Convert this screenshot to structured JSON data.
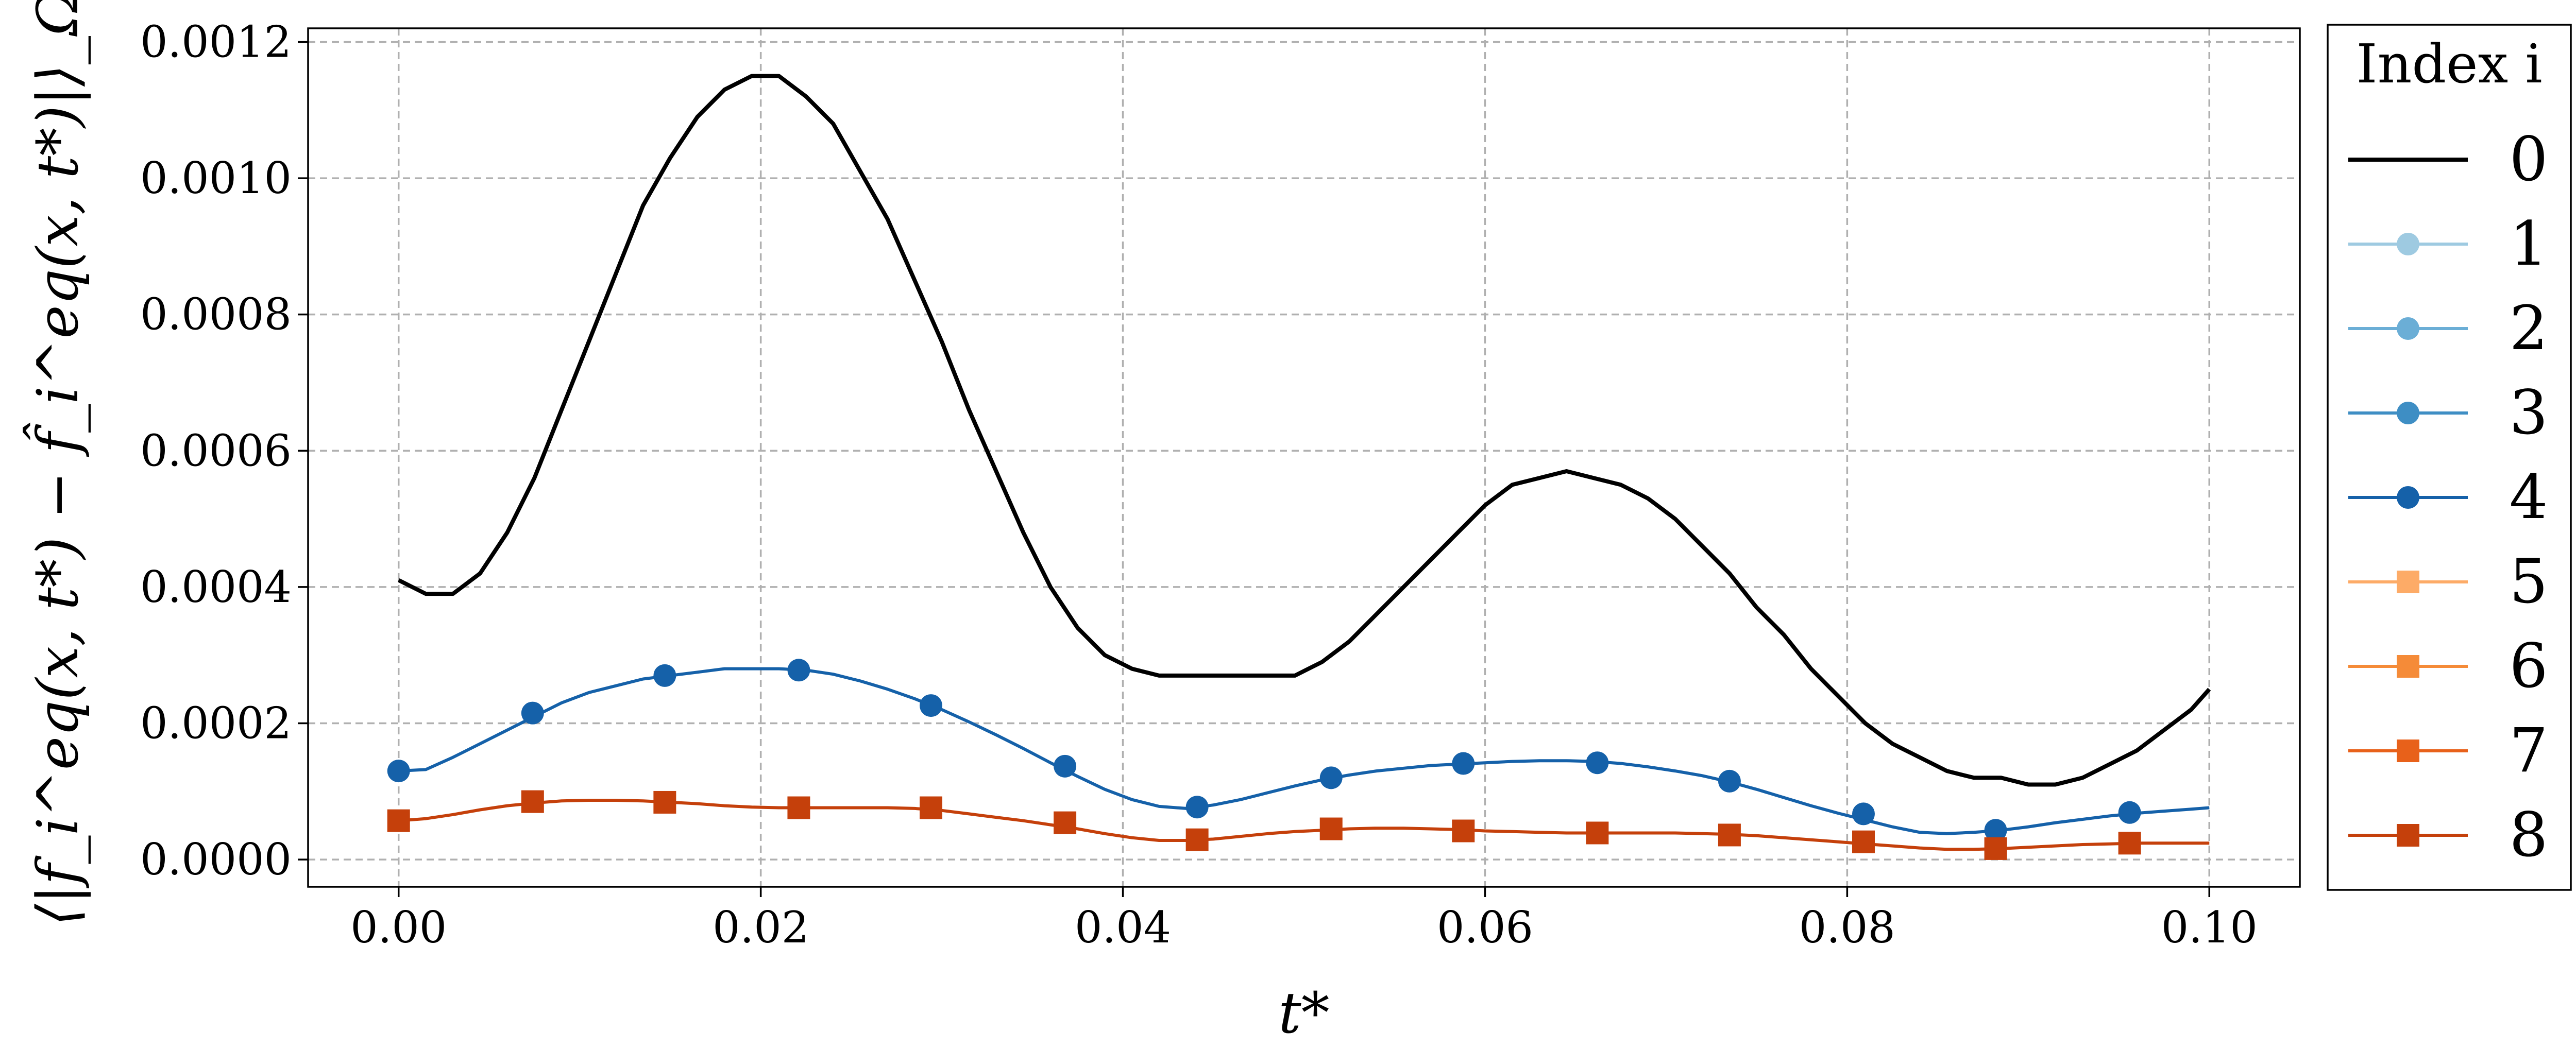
{
  "chart_data": {
    "type": "line",
    "xlabel": "t*",
    "ylabel": "⟨|f_i^eq(x, t*) − f̂_i^eq(x, t*)|⟩_Ω",
    "xlim": [
      -0.005,
      0.105
    ],
    "ylim": [
      -4e-05,
      0.00122
    ],
    "x_ticks": [
      "0.00",
      "0.02",
      "0.04",
      "0.06",
      "0.08",
      "0.10"
    ],
    "y_ticks": [
      "0.0000",
      "0.0002",
      "0.0004",
      "0.0006",
      "0.0008",
      "0.0010",
      "0.0012"
    ],
    "grid": true,
    "legend": {
      "title": "Index i",
      "placement": "outside-right"
    },
    "series": [
      {
        "name": "0",
        "color": "#000000",
        "marker": "none",
        "x": [
          0.0,
          0.0015,
          0.003,
          0.0045,
          0.006,
          0.0075,
          0.009,
          0.0105,
          0.012,
          0.0135,
          0.015,
          0.0165,
          0.018,
          0.0195,
          0.021,
          0.0225,
          0.024,
          0.0255,
          0.027,
          0.0285,
          0.03,
          0.0315,
          0.033,
          0.0345,
          0.036,
          0.0375,
          0.039,
          0.0405,
          0.042,
          0.0435,
          0.045,
          0.0465,
          0.048,
          0.0495,
          0.051,
          0.0525,
          0.054,
          0.0555,
          0.057,
          0.0585,
          0.06,
          0.0615,
          0.063,
          0.0645,
          0.066,
          0.0675,
          0.069,
          0.0705,
          0.072,
          0.0735,
          0.075,
          0.0765,
          0.078,
          0.0795,
          0.081,
          0.0825,
          0.084,
          0.0855,
          0.087,
          0.0885,
          0.09,
          0.0915,
          0.093,
          0.0945,
          0.096,
          0.0975,
          0.099,
          0.1
        ],
        "y": [
          0.00041,
          0.00039,
          0.00039,
          0.00042,
          0.00048,
          0.00056,
          0.00066,
          0.00076,
          0.00086,
          0.00096,
          0.00103,
          0.00109,
          0.00113,
          0.00115,
          0.00115,
          0.00112,
          0.00108,
          0.00101,
          0.00094,
          0.00085,
          0.00076,
          0.00066,
          0.00057,
          0.00048,
          0.0004,
          0.00034,
          0.0003,
          0.00028,
          0.00027,
          0.00027,
          0.00027,
          0.00027,
          0.00027,
          0.00027,
          0.00029,
          0.00032,
          0.00036,
          0.0004,
          0.00044,
          0.00048,
          0.00052,
          0.00055,
          0.00056,
          0.00057,
          0.00056,
          0.00055,
          0.00053,
          0.0005,
          0.00046,
          0.00042,
          0.00037,
          0.00033,
          0.00028,
          0.00024,
          0.0002,
          0.00017,
          0.00015,
          0.00013,
          0.00012,
          0.00012,
          0.00011,
          0.00011,
          0.00012,
          0.00014,
          0.00016,
          0.00019,
          0.00022,
          0.00025
        ]
      },
      {
        "name": "1",
        "color": "#9ecae1",
        "marker": "circle",
        "x": [],
        "y": []
      },
      {
        "name": "2",
        "color": "#6baed6",
        "marker": "circle",
        "x": [],
        "y": []
      },
      {
        "name": "3",
        "color": "#3e8ec4",
        "marker": "circle",
        "x": [],
        "y": []
      },
      {
        "name": "4",
        "color": "#1561a9",
        "marker": "circle",
        "x": [
          0.0,
          0.0015,
          0.003,
          0.0045,
          0.006,
          0.0075,
          0.009,
          0.0105,
          0.012,
          0.0135,
          0.015,
          0.0165,
          0.018,
          0.0195,
          0.021,
          0.0225,
          0.024,
          0.0255,
          0.027,
          0.0285,
          0.03,
          0.0315,
          0.033,
          0.0345,
          0.036,
          0.0375,
          0.039,
          0.0405,
          0.042,
          0.0435,
          0.045,
          0.0465,
          0.048,
          0.0495,
          0.051,
          0.0525,
          0.054,
          0.0555,
          0.057,
          0.0585,
          0.06,
          0.0615,
          0.063,
          0.0645,
          0.066,
          0.0675,
          0.069,
          0.0705,
          0.072,
          0.0735,
          0.075,
          0.0765,
          0.078,
          0.0795,
          0.081,
          0.0825,
          0.084,
          0.0855,
          0.087,
          0.0885,
          0.09,
          0.0915,
          0.093,
          0.0945,
          0.096,
          0.0975,
          0.099,
          0.1
        ],
        "y": [
          0.00013,
          0.000132,
          0.00015,
          0.00017,
          0.00019,
          0.00021,
          0.00023,
          0.000245,
          0.000255,
          0.000265,
          0.00027,
          0.000275,
          0.00028,
          0.00028,
          0.00028,
          0.000278,
          0.000272,
          0.000262,
          0.00025,
          0.000236,
          0.00022,
          0.000202,
          0.000183,
          0.000163,
          0.000142,
          0.000122,
          0.000103,
          8.8e-05,
          7.8e-05,
          7.5e-05,
          8e-05,
          8.8e-05,
          9.8e-05,
          0.000108,
          0.000117,
          0.000124,
          0.00013,
          0.000134,
          0.000138,
          0.00014,
          0.000142,
          0.000144,
          0.000145,
          0.000145,
          0.000144,
          0.000141,
          0.000136,
          0.00013,
          0.000123,
          0.000114,
          0.000103,
          9.1e-05,
          7.9e-05,
          6.8e-05,
          5.8e-05,
          4.8e-05,
          4e-05,
          3.8e-05,
          4e-05,
          4.3e-05,
          4.8e-05,
          5.4e-05,
          5.9e-05,
          6.4e-05,
          6.8e-05,
          7.1e-05,
          7.4e-05,
          7.6e-05
        ]
      },
      {
        "name": "5",
        "color": "#fdab67",
        "marker": "square",
        "x": [],
        "y": []
      },
      {
        "name": "6",
        "color": "#f58b38",
        "marker": "square",
        "x": [],
        "y": []
      },
      {
        "name": "7",
        "color": "#e8611a",
        "marker": "square",
        "x": [],
        "y": []
      },
      {
        "name": "8",
        "color": "#c5400b",
        "marker": "square",
        "x": [
          0.0,
          0.0015,
          0.003,
          0.0045,
          0.006,
          0.0075,
          0.009,
          0.0105,
          0.012,
          0.0135,
          0.015,
          0.0165,
          0.018,
          0.0195,
          0.021,
          0.0225,
          0.024,
          0.0255,
          0.027,
          0.0285,
          0.03,
          0.0315,
          0.033,
          0.0345,
          0.036,
          0.0375,
          0.039,
          0.0405,
          0.042,
          0.0435,
          0.045,
          0.0465,
          0.048,
          0.0495,
          0.051,
          0.0525,
          0.054,
          0.0555,
          0.057,
          0.0585,
          0.06,
          0.0615,
          0.063,
          0.0645,
          0.066,
          0.0675,
          0.069,
          0.0705,
          0.072,
          0.0735,
          0.075,
          0.0765,
          0.078,
          0.0795,
          0.081,
          0.0825,
          0.084,
          0.0855,
          0.087,
          0.0885,
          0.09,
          0.0915,
          0.093,
          0.0945,
          0.096,
          0.0975,
          0.099,
          0.1
        ],
        "y": [
          5.7e-05,
          6e-05,
          6.6e-05,
          7.3e-05,
          7.9e-05,
          8.3e-05,
          8.6e-05,
          8.7e-05,
          8.7e-05,
          8.6e-05,
          8.4e-05,
          8.2e-05,
          7.9e-05,
          7.7e-05,
          7.6e-05,
          7.6e-05,
          7.6e-05,
          7.6e-05,
          7.6e-05,
          7.5e-05,
          7.2e-05,
          6.7e-05,
          6.2e-05,
          5.7e-05,
          5.1e-05,
          4.5e-05,
          3.8e-05,
          3.2e-05,
          2.8e-05,
          2.8e-05,
          3e-05,
          3.4e-05,
          3.8e-05,
          4.1e-05,
          4.3e-05,
          4.5e-05,
          4.6e-05,
          4.6e-05,
          4.5e-05,
          4.4e-05,
          4.2e-05,
          4.1e-05,
          4e-05,
          3.9e-05,
          3.9e-05,
          3.9e-05,
          3.9e-05,
          3.9e-05,
          3.8e-05,
          3.7e-05,
          3.5e-05,
          3.2e-05,
          2.9e-05,
          2.6e-05,
          2.3e-05,
          2e-05,
          1.7e-05,
          1.5e-05,
          1.5e-05,
          1.6e-05,
          1.8e-05,
          2e-05,
          2.2e-05,
          2.3e-05,
          2.4e-05,
          2.4e-05,
          2.4e-05,
          2.4e-05
        ]
      }
    ],
    "markers": {
      "4": {
        "x": [
          0.0,
          0.0074,
          0.0147,
          0.0221,
          0.0294,
          0.0368,
          0.0441,
          0.0515,
          0.0588,
          0.0662,
          0.0735,
          0.0809,
          0.0882,
          0.0956
        ],
        "y": [
          0.00013,
          0.000215,
          0.00027,
          0.000278,
          0.000226,
          0.000137,
          7.7e-05,
          0.00012,
          0.000141,
          0.000142,
          0.000115,
          6.7e-05,
          4.3e-05,
          6.9e-05
        ]
      },
      "8": {
        "x": [
          0.0,
          0.0074,
          0.0147,
          0.0221,
          0.0294,
          0.0368,
          0.0441,
          0.0515,
          0.0588,
          0.0662,
          0.0735,
          0.0809,
          0.0882,
          0.0956
        ],
        "y": [
          5.7e-05,
          8.5e-05,
          8.4e-05,
          7.6e-05,
          7.6e-05,
          5.4e-05,
          2.9e-05,
          4.5e-05,
          4.2e-05,
          3.9e-05,
          3.6e-05,
          2.6e-05,
          1.6e-05,
          2.4e-05
        ]
      }
    }
  }
}
